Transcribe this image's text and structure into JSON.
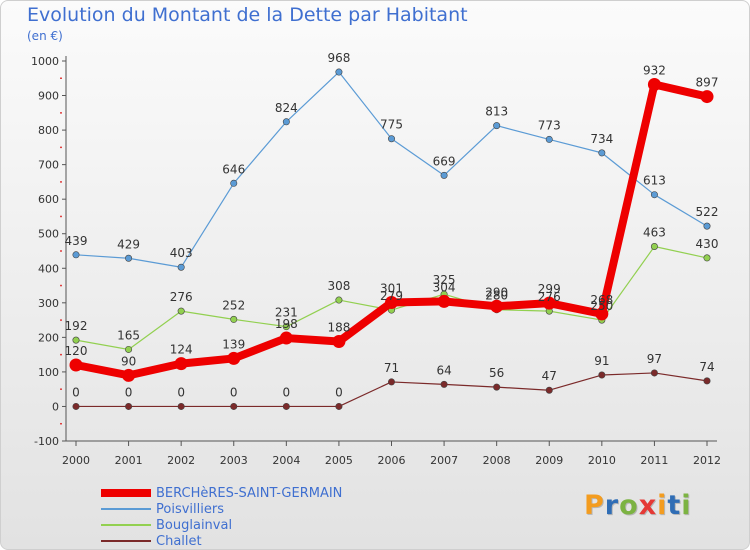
{
  "header": {
    "title": "Evolution du Montant de la Dette par Habitant",
    "unit": "(en €)"
  },
  "logo": {
    "text": "Proxiti",
    "colors": [
      "#f39c1f",
      "#2f6db5",
      "#7cb342",
      "#e53935",
      "#f39c1f",
      "#2f6db5",
      "#7cb342"
    ]
  },
  "chart_data": {
    "type": "line",
    "title": "Evolution du Montant de la Dette par Habitant",
    "ylabel": "(en €)",
    "xlabel": "",
    "x": [
      "2000",
      "2001",
      "2002",
      "2003",
      "2004",
      "2005",
      "2006",
      "2007",
      "2008",
      "2009",
      "2010",
      "2011",
      "2012"
    ],
    "ylim": [
      -100,
      1000
    ],
    "yticks": [
      -100,
      0,
      100,
      200,
      300,
      400,
      500,
      600,
      700,
      800,
      900,
      1000
    ],
    "grid": false,
    "legend_position": "bottom-left",
    "series": [
      {
        "name": "BERCHèRES-SAINT-GERMAIN",
        "color": "#ee0000",
        "values": [
          120,
          90,
          124,
          139,
          198,
          188,
          301,
          304,
          290,
          299,
          268,
          932,
          897
        ]
      },
      {
        "name": "Poisvilliers",
        "color": "#5b9bd5",
        "values": [
          439,
          429,
          403,
          646,
          824,
          968,
          775,
          669,
          813,
          773,
          734,
          613,
          522
        ]
      },
      {
        "name": "Bouglainval",
        "color": "#92d050",
        "values": [
          192,
          165,
          276,
          252,
          231,
          308,
          279,
          325,
          280,
          276,
          250,
          463,
          430
        ]
      },
      {
        "name": "Challet",
        "color": "#7b2a2a",
        "values": [
          0,
          0,
          0,
          0,
          0,
          0,
          71,
          64,
          56,
          47,
          91,
          97,
          74
        ]
      }
    ]
  }
}
